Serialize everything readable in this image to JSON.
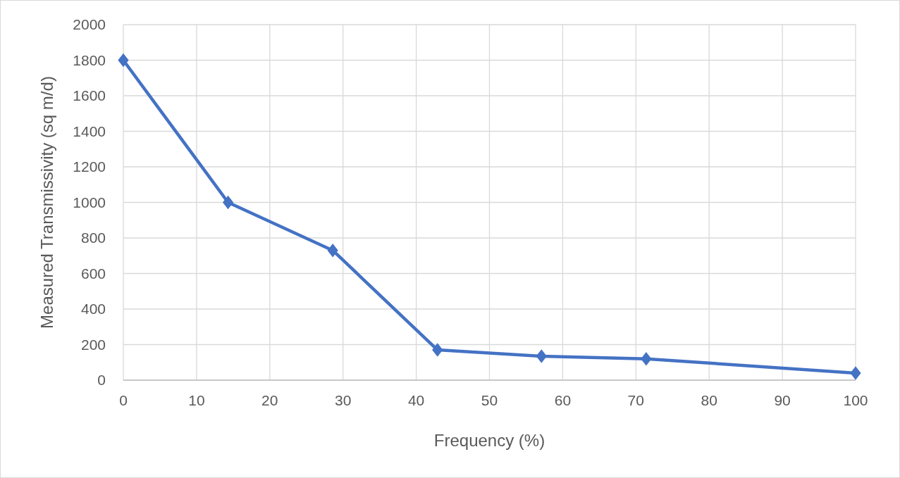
{
  "chart_data": {
    "type": "line",
    "xlabel": "Frequency (%)",
    "ylabel": "Measured Transmissivity (sq m/d)",
    "x": [
      0,
      14.3,
      28.6,
      42.9,
      57.1,
      71.4,
      100
    ],
    "series": [
      {
        "color": "#4472c4",
        "values": [
          1800,
          1000,
          730,
          170,
          135,
          120,
          40
        ]
      }
    ],
    "xlim": [
      0,
      100
    ],
    "xticks": [
      0,
      10,
      20,
      30,
      40,
      50,
      60,
      70,
      80,
      90,
      100
    ],
    "ylim": [
      0,
      2000
    ],
    "yticks": [
      0,
      200,
      400,
      600,
      800,
      1000,
      1200,
      1400,
      1600,
      1800,
      2000
    ],
    "grid": true,
    "marker": "diamond",
    "line_style": "solid"
  }
}
